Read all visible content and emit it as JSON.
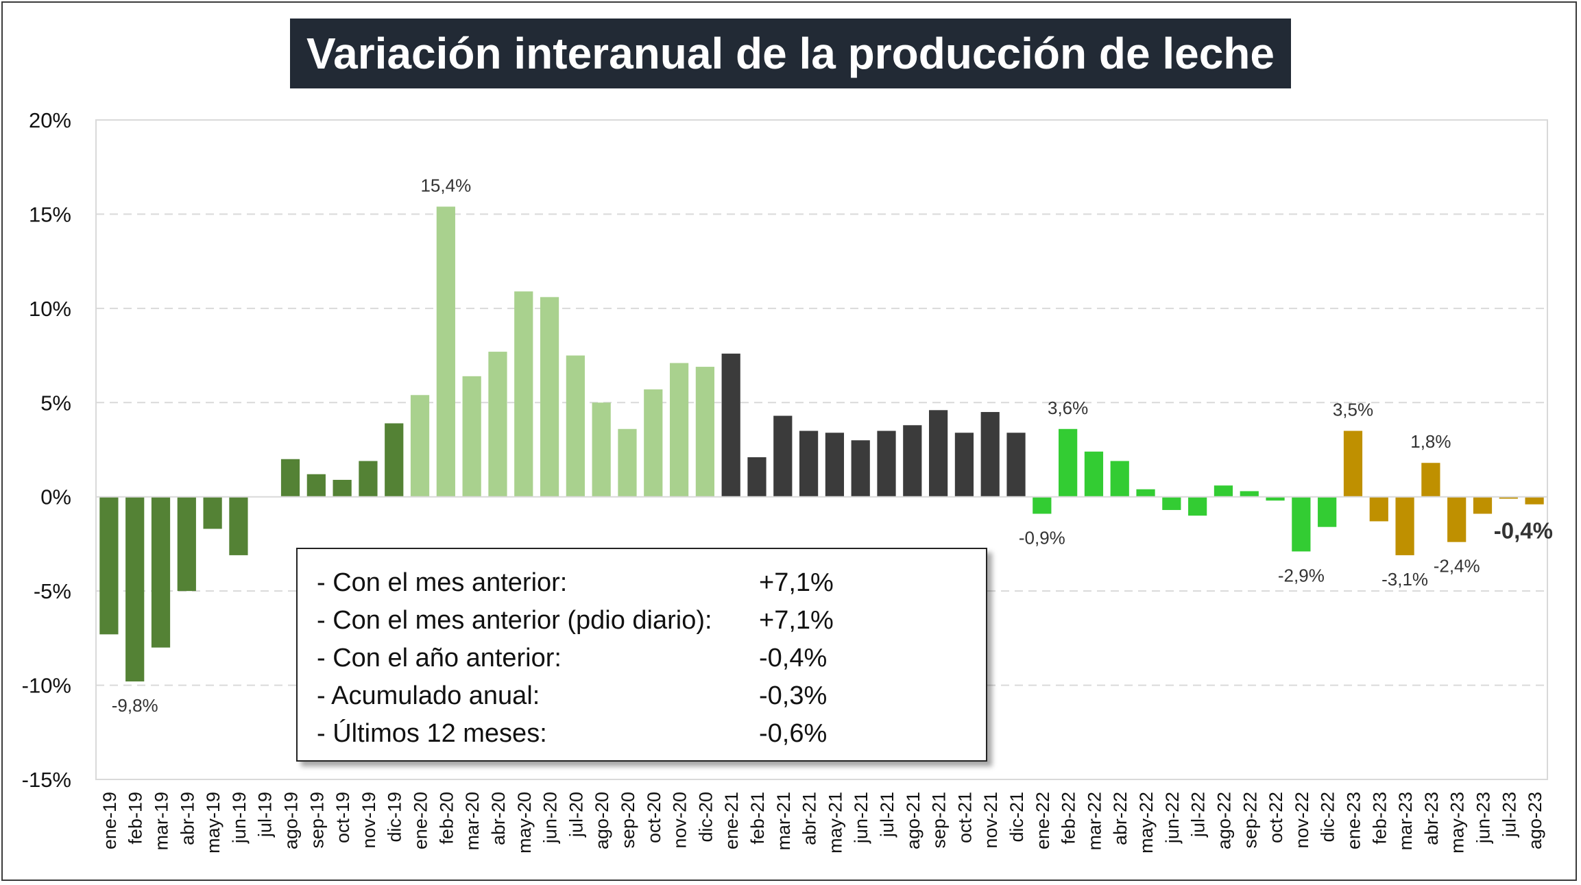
{
  "title": "Variación interanual de la producción de leche",
  "summary": {
    "rows": [
      {
        "label": "- Con el mes anterior:",
        "value": "+7,1%"
      },
      {
        "label": "- Con el mes anterior (pdio diario):",
        "value": "+7,1%"
      },
      {
        "label": "- Con el año anterior:",
        "value": "-0,4%"
      },
      {
        "label": "- Acumulado anual:",
        "value": "-0,3%"
      },
      {
        "label": "- Últimos 12 meses:",
        "value": "-0,6%"
      }
    ]
  },
  "colors": {
    "2019": "#548235",
    "2020": "#a9d18e",
    "2021": "#3b3b3b",
    "2022": "#33cc33",
    "2023": "#bf9000",
    "grid": "#d9d9d9",
    "title_bg": "#222a35"
  },
  "chart_data": {
    "type": "bar",
    "title": "Variación interanual de la producción de leche",
    "xlabel": "",
    "ylabel": "",
    "ylim": [
      -15,
      20
    ],
    "y_ticks": [
      20,
      15,
      10,
      5,
      0,
      -5,
      -10,
      -15
    ],
    "y_tick_labels": [
      "20%",
      "15%",
      "10%",
      "5%",
      "0%",
      "-5%",
      "-10%",
      "-15%"
    ],
    "grid": true,
    "legend": "none",
    "categories": [
      "ene-19",
      "feb-19",
      "mar-19",
      "abr-19",
      "may-19",
      "jun-19",
      "jul-19",
      "ago-19",
      "sep-19",
      "oct-19",
      "nov-19",
      "dic-19",
      "ene-20",
      "feb-20",
      "mar-20",
      "abr-20",
      "may-20",
      "jun-20",
      "jul-20",
      "ago-20",
      "sep-20",
      "oct-20",
      "nov-20",
      "dic-20",
      "ene-21",
      "feb-21",
      "mar-21",
      "abr-21",
      "may-21",
      "jun-21",
      "jul-21",
      "ago-21",
      "sep-21",
      "oct-21",
      "nov-21",
      "dic-21",
      "ene-22",
      "feb-22",
      "mar-22",
      "abr-22",
      "may-22",
      "jun-22",
      "jul-22",
      "ago-22",
      "sep-22",
      "oct-22",
      "nov-22",
      "dic-22",
      "ene-23",
      "feb-23",
      "mar-23",
      "abr-23",
      "may-23",
      "jun-23",
      "jul-23",
      "ago-23"
    ],
    "values": [
      -7.3,
      -9.8,
      -8.0,
      -5.0,
      -1.7,
      -3.1,
      0.0,
      2.0,
      1.2,
      0.9,
      1.9,
      3.9,
      5.4,
      15.4,
      6.4,
      7.7,
      10.9,
      10.6,
      7.5,
      5.0,
      3.6,
      5.7,
      7.1,
      6.9,
      7.6,
      2.1,
      4.3,
      3.5,
      3.4,
      3.0,
      3.5,
      3.8,
      4.6,
      3.4,
      4.5,
      3.4,
      -0.9,
      3.6,
      2.4,
      1.9,
      0.4,
      -0.7,
      -1.0,
      0.6,
      0.3,
      -0.2,
      -2.9,
      -1.6,
      3.5,
      -1.3,
      -3.1,
      1.8,
      -2.4,
      -0.9,
      -0.1,
      -0.4
    ],
    "groups": [
      "2019",
      "2019",
      "2019",
      "2019",
      "2019",
      "2019",
      "2019",
      "2019",
      "2019",
      "2019",
      "2019",
      "2019",
      "2020",
      "2020",
      "2020",
      "2020",
      "2020",
      "2020",
      "2020",
      "2020",
      "2020",
      "2020",
      "2020",
      "2020",
      "2021",
      "2021",
      "2021",
      "2021",
      "2021",
      "2021",
      "2021",
      "2021",
      "2021",
      "2021",
      "2021",
      "2021",
      "2022",
      "2022",
      "2022",
      "2022",
      "2022",
      "2022",
      "2022",
      "2022",
      "2022",
      "2022",
      "2022",
      "2022",
      "2023",
      "2023",
      "2023",
      "2023",
      "2023",
      "2023",
      "2023",
      "2023"
    ],
    "data_labels": [
      {
        "index": 1,
        "text": "-9,8%",
        "bold": false
      },
      {
        "index": 13,
        "text": "15,4%",
        "bold": false
      },
      {
        "index": 36,
        "text": "-0,9%",
        "bold": false
      },
      {
        "index": 37,
        "text": "3,6%",
        "bold": false
      },
      {
        "index": 46,
        "text": "-2,9%",
        "bold": false
      },
      {
        "index": 48,
        "text": "3,5%",
        "bold": false
      },
      {
        "index": 50,
        "text": "-3,1%",
        "bold": false
      },
      {
        "index": 51,
        "text": "1,8%",
        "bold": false
      },
      {
        "index": 52,
        "text": "-2,4%",
        "bold": false
      },
      {
        "index": 55,
        "text": "-0,4%",
        "bold": true
      }
    ]
  }
}
